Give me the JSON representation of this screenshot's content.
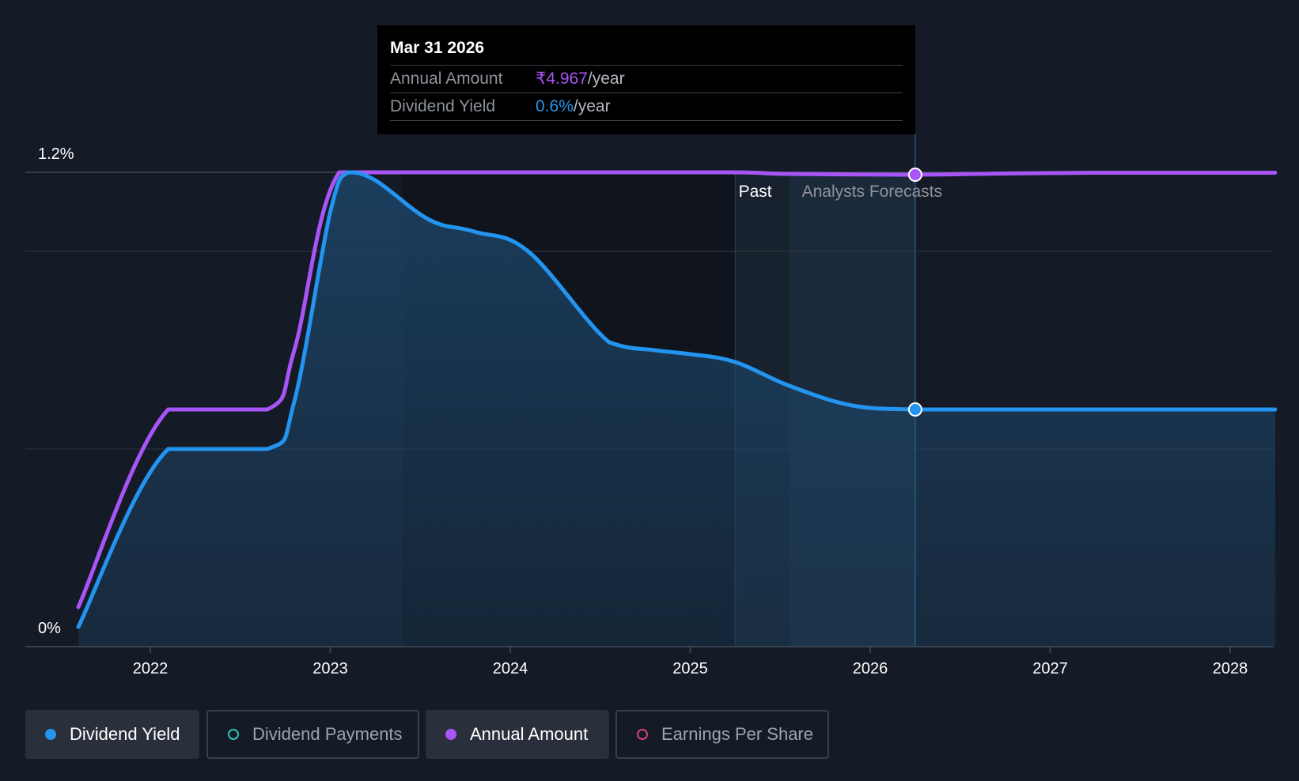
{
  "chart_data": {
    "type": "area",
    "x_axis": {
      "ticks": [
        "2022",
        "2023",
        "2024",
        "2025",
        "2026",
        "2027",
        "2028"
      ],
      "range": [
        2021.6,
        2028.25
      ]
    },
    "y_axis": {
      "ticks": [
        "1.2%",
        "0%"
      ],
      "range_percent": [
        0,
        1.2
      ]
    },
    "region_labels": {
      "past": "Past",
      "forecast": "Analysts Forecasts"
    },
    "region_boundaries": {
      "past_start": 2025.25,
      "forecast_start": 2025.55,
      "cursor": 2026.25
    },
    "series": [
      {
        "name": "Dividend Yield",
        "color": "#2394f0",
        "unit": "%",
        "x": [
          2021.6,
          2022.1,
          2022.65,
          2022.8,
          2023.0,
          2023.1,
          2023.25,
          2023.55,
          2023.8,
          2024.1,
          2024.55,
          2024.8,
          2025.0,
          2025.25,
          2025.55,
          2025.9,
          2026.25,
          2026.75,
          2027.25,
          2028.25
        ],
        "values": [
          0.05,
          0.5,
          0.5,
          0.62,
          1.1,
          1.2,
          1.18,
          1.08,
          1.05,
          1.0,
          0.77,
          0.75,
          0.74,
          0.72,
          0.66,
          0.61,
          0.6,
          0.6,
          0.6,
          0.6
        ]
      },
      {
        "name": "Annual Amount",
        "color": "#a855f7",
        "unit": "₹/year",
        "x": [
          2021.6,
          2022.1,
          2022.65,
          2022.8,
          2023.05,
          2023.5,
          2024.5,
          2025.25,
          2025.55,
          2026.25,
          2026.75,
          2027.25,
          2028.25
        ],
        "values": [
          0.1,
          0.6,
          0.6,
          0.75,
          1.2,
          1.2,
          1.2,
          1.2,
          1.196,
          1.194,
          1.197,
          1.199,
          1.199
        ],
        "note": "plotted on the same vertical scale for display"
      }
    ],
    "tooltip": {
      "date": "Mar 31 2026",
      "annual_amount": "₹4.967",
      "dividend_yield": "0.6%",
      "unit": "/year"
    }
  },
  "tooltip": {
    "date": "Mar 31 2026",
    "annual_label": "Annual Amount",
    "annual_value": "₹4.967",
    "yield_label": "Dividend Yield",
    "yield_value": "0.6%",
    "unit": "/year"
  },
  "legend": [
    {
      "label": "Dividend Yield",
      "color": "#2394f0",
      "active": true
    },
    {
      "label": "Dividend Payments",
      "color": "#2ec4b6",
      "active": false
    },
    {
      "label": "Annual Amount",
      "color": "#a855f7",
      "active": true
    },
    {
      "label": "Earnings Per Share",
      "color": "#d0456f",
      "active": false
    }
  ]
}
